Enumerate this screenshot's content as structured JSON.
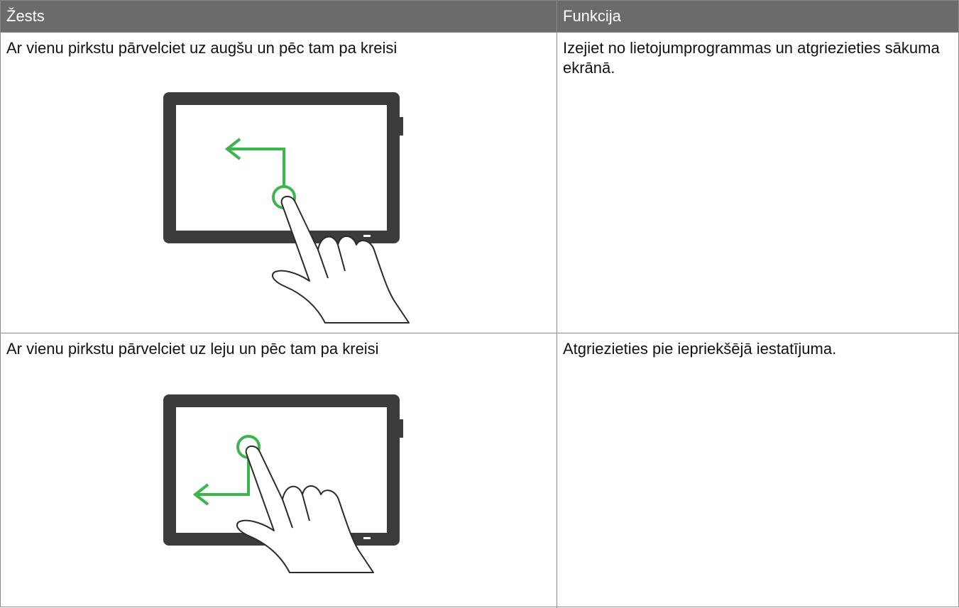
{
  "header": {
    "columns": [
      "Žests",
      "Funkcija"
    ]
  },
  "table": {
    "rows": [
      [
        "Ar vienu pirkstu pārvelciet uz augšu un pēc tam pa kreisi",
        "Izejiet no lietojumprogrammas un atgriezieties sākuma ekrānā."
      ],
      [
        "Ar vienu pirkstu pārvelciet uz leju un pēc tam pa kreisi",
        "Atgriezieties pie iepriekšējā iestatījuma."
      ]
    ]
  }
}
